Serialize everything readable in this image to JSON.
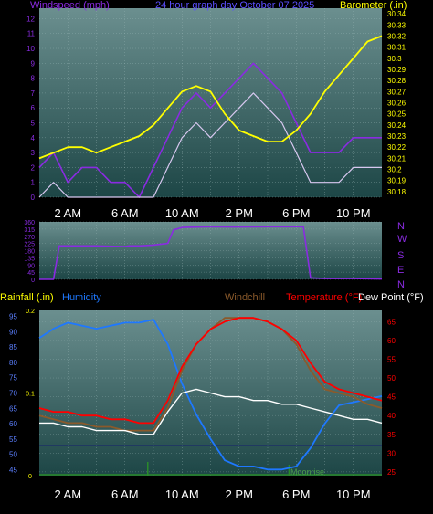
{
  "header": {
    "left_label": "Windspeed (mph)",
    "center_label": "24 hour graph day  October 07 2025",
    "right_label": "Barometer (.in)"
  },
  "colors": {
    "background": "#000000",
    "plot_top": "#5a7f7f",
    "plot_bottom": "#1f4a4a",
    "grid": "#9ab6b6",
    "wind": "#8a2be2",
    "gust_avg": "#d8c8f0",
    "barometer": "#ffff00",
    "direction": "#8a2be2",
    "humidity": "#1e78ff",
    "windchill": "#8b5a2b",
    "temperature": "#ff0000",
    "dew_point": "#ffffff",
    "rain": "#2a8a2a",
    "label_blue": "#5b7fff",
    "label_purple": "#8a2be2",
    "label_yellow": "#ffff00",
    "label_red": "#ff0000"
  },
  "time_axis": [
    "2 AM",
    "6 AM",
    "10 AM",
    "2 PM",
    "6 PM",
    "10 PM"
  ],
  "compass": [
    "N",
    "W",
    "S",
    "E",
    "N"
  ],
  "lower_labels": {
    "rainfall": "Rainfall (.in)",
    "humidity": "Humidity",
    "windchill": "Windchill",
    "temperature": "Temperature (°F)",
    "dew_point": "Dew Point (°F)",
    "moonrise": "Moonrise"
  },
  "chart_data": [
    {
      "type": "line",
      "title": "24 hour graph day  October 07 2025",
      "x_unit": "hours",
      "xlim": [
        0,
        24
      ],
      "y_left_ticks": [
        0,
        1,
        2,
        3,
        4,
        5,
        6,
        7,
        8,
        9,
        10,
        11,
        12
      ],
      "y_left_label": "Windspeed (mph)",
      "y_right_ticks": [
        "30.18",
        "30.19",
        "30.2",
        "30.21",
        "30.22",
        "30.23",
        "30.24",
        "30.25",
        "30.26",
        "30.27",
        "30.28",
        "30.29",
        "30.3",
        "30.31",
        "30.32",
        "30.33",
        "30.34"
      ],
      "y_right_label": "Barometer (.in)",
      "series": [
        {
          "name": "Windspeed (mph)",
          "axis": "left",
          "x": [
            0,
            1,
            2,
            3,
            4,
            5,
            6,
            7,
            8,
            9,
            10,
            11,
            12,
            13,
            14,
            15,
            16,
            17,
            18,
            19,
            20,
            21,
            22,
            23,
            24
          ],
          "y": [
            2,
            3,
            1,
            2,
            2,
            1,
            1,
            0,
            2,
            4,
            6,
            7,
            6,
            7,
            8,
            9,
            8,
            7,
            5,
            3,
            3,
            3,
            4,
            4,
            4
          ]
        },
        {
          "name": "Barometer (.in)",
          "axis": "right",
          "x": [
            0,
            1,
            2,
            3,
            4,
            5,
            6,
            7,
            8,
            9,
            10,
            11,
            12,
            13,
            14,
            15,
            16,
            17,
            18,
            19,
            20,
            21,
            22,
            23,
            24
          ],
          "y": [
            30.21,
            30.215,
            30.22,
            30.22,
            30.215,
            30.22,
            30.225,
            30.23,
            30.24,
            30.255,
            30.27,
            30.275,
            30.27,
            30.25,
            30.235,
            30.23,
            30.225,
            30.225,
            30.235,
            30.25,
            30.27,
            30.285,
            30.3,
            30.315,
            30.32
          ]
        }
      ]
    },
    {
      "type": "line",
      "title": "",
      "y_ticks": [
        0,
        45,
        90,
        135,
        180,
        225,
        270,
        315,
        360
      ],
      "series": [
        {
          "name": "Wind direction",
          "x": [
            0,
            1,
            1.4,
            2,
            4,
            6,
            6.3,
            7,
            8,
            9,
            9.4,
            10,
            12,
            14,
            16,
            18,
            18.5,
            19,
            20,
            22,
            24
          ],
          "y": [
            0,
            0,
            210,
            210,
            210,
            205,
            210,
            210,
            215,
            225,
            310,
            325,
            330,
            328,
            330,
            330,
            330,
            10,
            5,
            5,
            2
          ]
        }
      ]
    },
    {
      "type": "line",
      "title": "",
      "y_left_ticks": [
        45,
        50,
        55,
        60,
        65,
        70,
        75,
        80,
        85,
        90,
        95
      ],
      "y_left_label": "Humidity",
      "y_rain_ticks": [
        "0",
        "0.1",
        "0.2"
      ],
      "y_rain_label": "Rainfall (.in)",
      "y_right_ticks": [
        25,
        30,
        35,
        40,
        45,
        50,
        55,
        60,
        65
      ],
      "y_right_label": "Temperature (°F)",
      "series": [
        {
          "name": "Humidity",
          "x": [
            0,
            1,
            2,
            3,
            4,
            5,
            6,
            7,
            8,
            9,
            10,
            11,
            12,
            13,
            14,
            15,
            16,
            17,
            18,
            19,
            20,
            21,
            22,
            23,
            24
          ],
          "y": [
            88,
            91,
            93,
            92,
            91,
            92,
            93,
            93,
            94,
            86,
            73,
            63,
            55,
            48,
            46,
            46,
            45,
            45,
            46,
            52,
            60,
            66,
            67,
            68,
            69
          ]
        },
        {
          "name": "Windchill",
          "x": [
            0,
            1,
            2,
            3,
            4,
            5,
            6,
            7,
            8,
            9,
            10,
            11,
            12,
            13,
            14,
            15,
            16,
            17,
            18,
            19,
            20,
            21,
            22,
            23,
            24
          ],
          "y": [
            40,
            39,
            38,
            38,
            37,
            37,
            36,
            36,
            36,
            42,
            52,
            59,
            63,
            66,
            66,
            66,
            65,
            63,
            59,
            52,
            47,
            46,
            45,
            43,
            42
          ]
        },
        {
          "name": "Temperature (°F)",
          "x": [
            0,
            1,
            2,
            3,
            4,
            5,
            6,
            7,
            8,
            9,
            10,
            11,
            12,
            13,
            14,
            15,
            16,
            17,
            18,
            19,
            20,
            21,
            22,
            23,
            24
          ],
          "y": [
            42,
            41,
            41,
            40,
            40,
            39,
            39,
            38,
            38,
            44,
            53,
            59,
            63,
            65,
            66,
            66,
            65,
            63,
            60,
            54,
            49,
            47,
            46,
            45,
            44
          ]
        },
        {
          "name": "Dew Point (°F)",
          "x": [
            0,
            1,
            2,
            3,
            4,
            5,
            6,
            7,
            8,
            9,
            10,
            11,
            12,
            13,
            14,
            15,
            16,
            17,
            18,
            19,
            20,
            21,
            22,
            23,
            24
          ],
          "y": [
            38,
            38,
            37,
            37,
            36,
            36,
            36,
            35,
            35,
            41,
            46,
            47,
            46,
            45,
            45,
            44,
            44,
            43,
            43,
            42,
            41,
            40,
            39,
            39,
            38
          ]
        },
        {
          "name": "Rainfall (.in)",
          "x": [
            0,
            24
          ],
          "y": [
            0,
            0
          ]
        }
      ]
    }
  ]
}
